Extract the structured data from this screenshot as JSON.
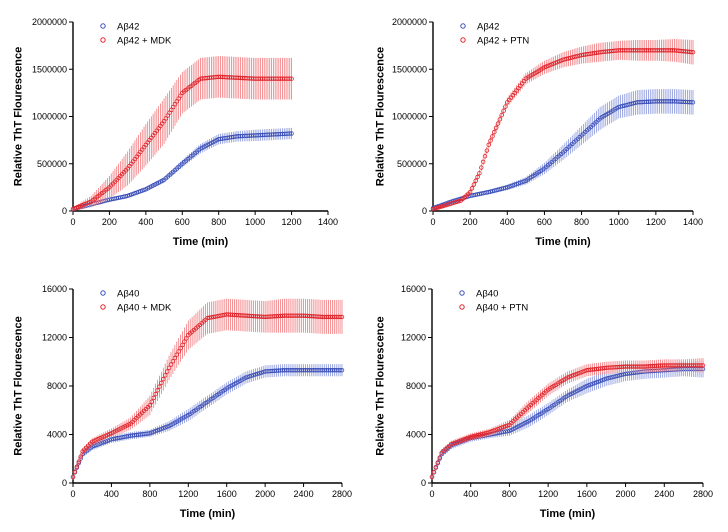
{
  "colors": {
    "blue": "#3b4fb8",
    "red": "#e0242b",
    "blue_err": "#8a98dc",
    "red_err": "#f07a7e"
  },
  "chart_data": [
    {
      "id": "top-left",
      "type": "line",
      "xlabel": "Time (min)",
      "ylabel": "Relative ThT Flourescence",
      "xlim": [
        0,
        1400
      ],
      "ylim": [
        0,
        2000000
      ],
      "xticks": [
        "0",
        "200",
        "400",
        "600",
        "800",
        "1000",
        "1200",
        "1400"
      ],
      "yticks": [
        "0",
        "500000",
        "1000000",
        "1500000",
        "2000000"
      ],
      "legend_position": "top-left",
      "series": [
        {
          "name": "Aβ42",
          "color": "blue",
          "x": [
            0,
            100,
            200,
            300,
            400,
            500,
            600,
            700,
            800,
            900,
            1000,
            1100,
            1200
          ],
          "values": [
            20000,
            70000,
            120000,
            160000,
            230000,
            330000,
            500000,
            660000,
            760000,
            790000,
            800000,
            810000,
            820000
          ],
          "err": [
            10000,
            15000,
            20000,
            20000,
            25000,
            30000,
            40000,
            50000,
            55000,
            55000,
            60000,
            60000,
            60000
          ]
        },
        {
          "name": "Aβ42 + MDK",
          "color": "red",
          "x": [
            0,
            100,
            200,
            300,
            400,
            500,
            600,
            700,
            800,
            900,
            1000,
            1100,
            1200
          ],
          "values": [
            20000,
            100000,
            250000,
            450000,
            700000,
            950000,
            1250000,
            1400000,
            1420000,
            1410000,
            1400000,
            1400000,
            1400000
          ],
          "err": [
            20000,
            60000,
            120000,
            180000,
            220000,
            240000,
            220000,
            220000,
            220000,
            220000,
            220000,
            220000,
            220000
          ]
        }
      ]
    },
    {
      "id": "top-right",
      "type": "line",
      "xlabel": "Time (min)",
      "ylabel": "Relative ThT Flourescence",
      "xlim": [
        0,
        1400
      ],
      "ylim": [
        0,
        2000000
      ],
      "xticks": [
        "0",
        "200",
        "400",
        "600",
        "800",
        "1000",
        "1200",
        "1400"
      ],
      "yticks": [
        "0",
        "500000",
        "1000000",
        "1500000",
        "2000000"
      ],
      "legend_position": "top-left",
      "series": [
        {
          "name": "Aβ42",
          "color": "blue",
          "x": [
            0,
            100,
            200,
            300,
            400,
            500,
            600,
            700,
            800,
            900,
            1000,
            1100,
            1200,
            1300,
            1400
          ],
          "values": [
            30000,
            100000,
            160000,
            200000,
            250000,
            320000,
            450000,
            620000,
            800000,
            980000,
            1100000,
            1150000,
            1160000,
            1160000,
            1150000
          ],
          "err": [
            10000,
            15000,
            20000,
            25000,
            30000,
            40000,
            60000,
            80000,
            100000,
            120000,
            120000,
            130000,
            130000,
            130000,
            130000
          ]
        },
        {
          "name": "Aβ42 + PTN",
          "color": "red",
          "x": [
            0,
            100,
            150,
            200,
            250,
            300,
            400,
            500,
            600,
            700,
            800,
            900,
            1000,
            1100,
            1200,
            1300,
            1400
          ],
          "values": [
            20000,
            80000,
            110000,
            200000,
            400000,
            700000,
            1150000,
            1400000,
            1520000,
            1600000,
            1650000,
            1680000,
            1700000,
            1700000,
            1700000,
            1700000,
            1680000
          ],
          "err": [
            10000,
            15000,
            20000,
            25000,
            35000,
            40000,
            50000,
            60000,
            70000,
            80000,
            90000,
            100000,
            100000,
            110000,
            110000,
            120000,
            130000
          ]
        }
      ]
    },
    {
      "id": "bottom-left",
      "type": "line",
      "xlabel": "Time (min)",
      "ylabel": "Relative ThT Flourescence",
      "xlim": [
        0,
        2800
      ],
      "ylim": [
        0,
        16000
      ],
      "xticks": [
        "0",
        "400",
        "800",
        "1200",
        "1600",
        "2000",
        "2400",
        "2800"
      ],
      "yticks": [
        "0",
        "4000",
        "8000",
        "12000",
        "16000"
      ],
      "legend_position": "top-left",
      "series": [
        {
          "name": "Aβ40",
          "color": "blue",
          "x": [
            0,
            100,
            200,
            400,
            600,
            800,
            1000,
            1200,
            1400,
            1600,
            1800,
            2000,
            2200,
            2400,
            2600,
            2800
          ],
          "values": [
            500,
            2400,
            3000,
            3600,
            3900,
            4100,
            4700,
            5600,
            6700,
            7800,
            8700,
            9200,
            9300,
            9300,
            9300,
            9300
          ],
          "err": [
            200,
            300,
            300,
            300,
            300,
            300,
            400,
            500,
            500,
            500,
            500,
            500,
            500,
            500,
            500,
            500
          ]
        },
        {
          "name": "Aβ40 + MDK",
          "color": "red",
          "x": [
            0,
            100,
            200,
            400,
            600,
            800,
            1000,
            1200,
            1400,
            1600,
            1800,
            2000,
            2200,
            2400,
            2600,
            2800
          ],
          "values": [
            500,
            2600,
            3400,
            4100,
            4900,
            6400,
            9500,
            12200,
            13600,
            13900,
            13800,
            13700,
            13800,
            13800,
            13700,
            13700
          ],
          "err": [
            200,
            300,
            300,
            400,
            500,
            800,
            1000,
            1200,
            1300,
            1300,
            1300,
            1300,
            1400,
            1400,
            1400,
            1400
          ]
        }
      ]
    },
    {
      "id": "bottom-right",
      "type": "line",
      "xlabel": "Time (min)",
      "ylabel": "Relative ThT Flourescence",
      "xlim": [
        0,
        2800
      ],
      "ylim": [
        0,
        16000
      ],
      "xticks": [
        "0",
        "400",
        "800",
        "1200",
        "1600",
        "2000",
        "2400",
        "2800"
      ],
      "yticks": [
        "0",
        "4000",
        "8000",
        "12000",
        "16000"
      ],
      "legend_position": "top-left",
      "series": [
        {
          "name": "Aβ40",
          "color": "blue",
          "x": [
            0,
            100,
            200,
            400,
            600,
            800,
            1000,
            1200,
            1400,
            1600,
            1800,
            2000,
            2200,
            2400,
            2600,
            2800
          ],
          "values": [
            500,
            2400,
            3100,
            3700,
            4000,
            4300,
            5100,
            6100,
            7200,
            8000,
            8600,
            9000,
            9200,
            9300,
            9400,
            9400
          ],
          "err": [
            200,
            300,
            300,
            300,
            300,
            400,
            500,
            500,
            500,
            600,
            600,
            600,
            600,
            600,
            600,
            700
          ]
        },
        {
          "name": "Aβ40 + PTN",
          "color": "red",
          "x": [
            0,
            100,
            200,
            400,
            600,
            800,
            1000,
            1200,
            1400,
            1600,
            1800,
            2000,
            2200,
            2400,
            2600,
            2800
          ],
          "values": [
            500,
            2500,
            3200,
            3800,
            4200,
            4800,
            6300,
            7700,
            8700,
            9300,
            9500,
            9600,
            9600,
            9700,
            9700,
            9700
          ],
          "err": [
            200,
            300,
            300,
            300,
            300,
            400,
            500,
            500,
            500,
            500,
            500,
            500,
            500,
            500,
            500,
            600
          ]
        }
      ]
    }
  ]
}
